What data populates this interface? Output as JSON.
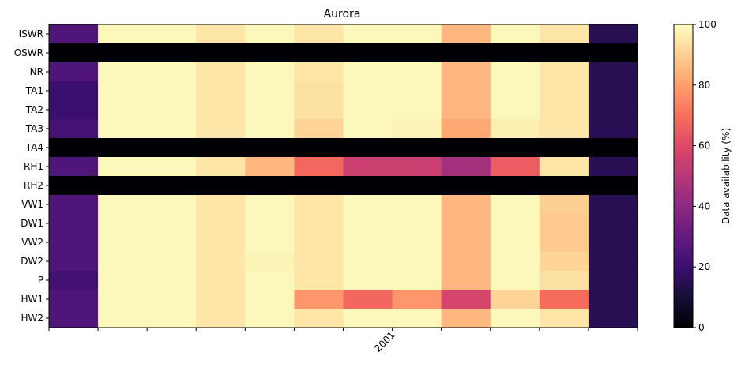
{
  "chart_data": {
    "type": "heatmap",
    "title": "Aurora",
    "xlabel": "",
    "ylabel": "",
    "colormap": "magma",
    "rows": [
      "ISWR",
      "OSWR",
      "NR",
      "TA1",
      "TA2",
      "TA3",
      "TA4",
      "RH1",
      "RH2",
      "VW1",
      "DW1",
      "VW2",
      "DW2",
      "P",
      "HW1",
      "HW2"
    ],
    "x_tick_labels": [
      "",
      "",
      "",
      "",
      "",
      "",
      "",
      "2001",
      "",
      "",
      "",
      "",
      ""
    ],
    "values": [
      [
        25,
        99,
        99,
        95,
        99,
        95,
        99,
        99,
        85,
        99,
        95,
        15
      ],
      [
        0,
        0,
        0,
        0,
        0,
        0,
        0,
        0,
        0,
        0,
        0,
        0
      ],
      [
        25,
        99,
        99,
        95,
        99,
        95,
        99,
        99,
        85,
        99,
        95,
        15
      ],
      [
        20,
        99,
        99,
        95,
        99,
        94,
        99,
        99,
        85,
        99,
        95,
        15
      ],
      [
        20,
        99,
        99,
        95,
        99,
        94,
        99,
        99,
        85,
        99,
        95,
        15
      ],
      [
        23,
        99,
        99,
        95,
        99,
        91,
        99,
        98,
        82,
        97,
        95,
        15
      ],
      [
        0,
        0,
        0,
        0,
        0,
        0,
        0,
        0,
        0,
        0,
        0,
        0
      ],
      [
        25,
        99,
        99,
        95,
        85,
        68,
        55,
        55,
        45,
        65,
        95,
        15
      ],
      [
        0,
        0,
        0,
        0,
        0,
        0,
        0,
        0,
        0,
        0,
        0,
        0
      ],
      [
        25,
        99,
        99,
        95,
        99,
        95,
        99,
        99,
        85,
        99,
        90,
        15
      ],
      [
        25,
        99,
        99,
        95,
        99,
        95,
        99,
        99,
        85,
        99,
        89,
        15
      ],
      [
        25,
        99,
        99,
        95,
        99,
        95,
        99,
        99,
        85,
        99,
        89,
        15
      ],
      [
        25,
        99,
        99,
        95,
        98,
        95,
        99,
        99,
        85,
        99,
        91,
        15
      ],
      [
        22,
        99,
        99,
        95,
        99,
        95,
        99,
        99,
        85,
        99,
        94,
        15
      ],
      [
        25,
        99,
        99,
        95,
        99,
        78,
        68,
        78,
        58,
        91,
        69,
        15
      ],
      [
        25,
        99,
        99,
        95,
        99,
        95,
        99,
        99,
        85,
        99,
        95,
        15
      ]
    ],
    "colorbar": {
      "label": "Data availability (%)",
      "range": [
        0,
        100
      ],
      "ticks": [
        "0",
        "20",
        "40",
        "60",
        "80",
        "100"
      ]
    }
  }
}
